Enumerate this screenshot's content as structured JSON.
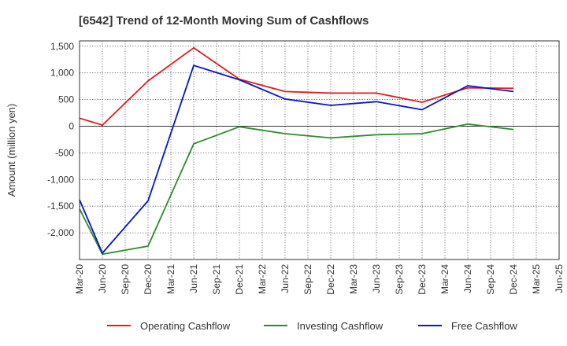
{
  "chart_data": {
    "type": "line",
    "title": "[6542]  Trend of 12-Month Moving Sum of Cashflows",
    "xlabel": "",
    "ylabel": "Amount (million yen)",
    "ylim": [
      -2500,
      1600
    ],
    "yticks": [
      1500,
      1000,
      500,
      0,
      -500,
      -1000,
      -1500,
      -2000
    ],
    "ytick_labels": [
      "1,500",
      "1,000",
      "500",
      "0",
      "-500",
      "-1,000",
      "-1,500",
      "-2,000"
    ],
    "categories": [
      "Mar-20",
      "Jun-20",
      "Sep-20",
      "Dec-20",
      "Mar-21",
      "Jun-21",
      "Sep-21",
      "Dec-21",
      "Mar-22",
      "Jun-22",
      "Sep-22",
      "Dec-22",
      "Mar-23",
      "Jun-23",
      "Sep-23",
      "Dec-23",
      "Mar-24",
      "Jun-24",
      "Sep-24",
      "Dec-24",
      "Mar-25",
      "Jun-25"
    ],
    "grid": true,
    "legend_position": "bottom",
    "series": [
      {
        "name": "Operating Cashflow",
        "color": "#e31a1c",
        "values": [
          150,
          20,
          null,
          850,
          null,
          1470,
          null,
          880,
          null,
          650,
          null,
          620,
          null,
          620,
          null,
          450,
          null,
          720,
          null,
          710,
          null,
          null
        ]
      },
      {
        "name": "Investing Cashflow",
        "color": "#2e8b2e",
        "values": [
          -1550,
          -2400,
          null,
          -2250,
          null,
          -330,
          null,
          -10,
          null,
          -140,
          null,
          -220,
          null,
          -160,
          null,
          -140,
          null,
          40,
          null,
          -60,
          null,
          null
        ]
      },
      {
        "name": "Free Cashflow",
        "color": "#0a14c8",
        "values": [
          -1380,
          -2380,
          null,
          -1400,
          null,
          1140,
          null,
          870,
          null,
          510,
          null,
          390,
          null,
          460,
          null,
          310,
          null,
          760,
          null,
          650,
          null,
          null
        ]
      }
    ]
  }
}
